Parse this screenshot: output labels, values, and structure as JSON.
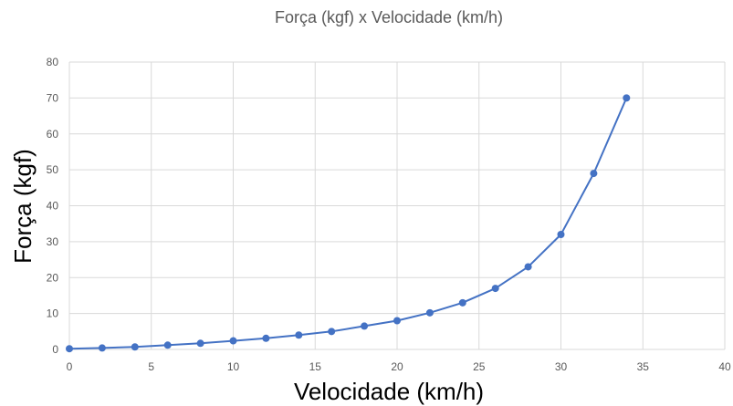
{
  "chart_data": {
    "type": "scatter",
    "title": "Força (kgf) x Velocidade (km/h)",
    "xlabel": "Velocidade (km/h)",
    "ylabel": "Força (kgf)",
    "xlim": [
      0,
      40
    ],
    "ylim": [
      0,
      80
    ],
    "xticks": [
      0,
      5,
      10,
      15,
      20,
      25,
      30,
      35,
      40
    ],
    "yticks": [
      0,
      10,
      20,
      30,
      40,
      50,
      60,
      70,
      80
    ],
    "grid": true,
    "legend": "none",
    "line_style": "straight lines with markers",
    "series": [
      {
        "color": "#4472c4",
        "x": [
          0,
          2,
          4,
          6,
          8,
          10,
          12,
          14,
          16,
          18,
          20,
          22,
          24,
          26,
          28,
          30,
          32,
          34
        ],
        "y": [
          0.2,
          0.4,
          0.7,
          1.2,
          1.7,
          2.4,
          3.1,
          4.0,
          5.0,
          6.5,
          8.0,
          10.2,
          13.0,
          17.0,
          23.0,
          32.0,
          49.0,
          70.0
        ]
      }
    ]
  },
  "colors": {
    "grid": "#d9d9d9",
    "series": "#4472c4",
    "tick_text": "#595959",
    "title_text": "#595959",
    "axis_title": "#000000"
  }
}
